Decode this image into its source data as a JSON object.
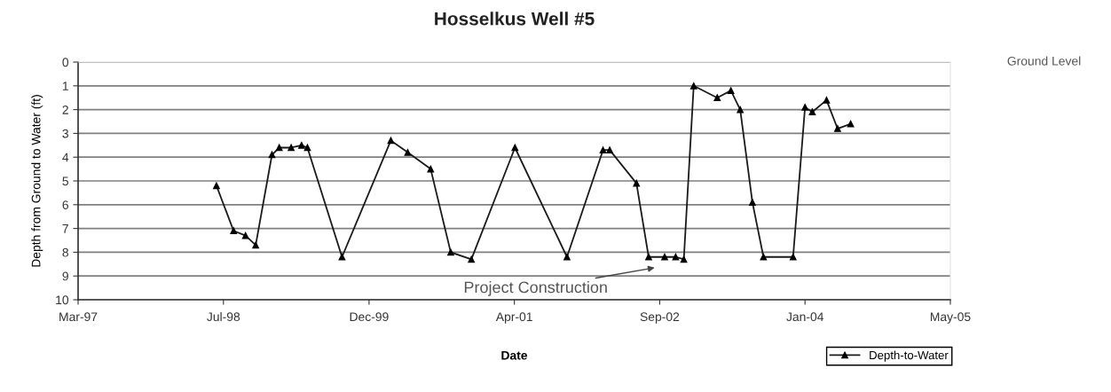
{
  "chart_data": {
    "type": "line",
    "title": "Hosselkus Well #5",
    "xlabel": "Date",
    "ylabel": "Depth from Ground to Water (ft)",
    "x": [
      "1998-07-01",
      "1998-08-29",
      "1998-10-09",
      "1998-11-13",
      "1999-01-08",
      "1999-02-02",
      "1999-03-15",
      "1999-04-20",
      "1999-05-10",
      "1999-09-06",
      "2000-02-21",
      "2000-04-19",
      "2000-07-07",
      "2000-09-14",
      "2000-11-24",
      "2001-04-23",
      "2001-10-19",
      "2002-02-20",
      "2002-03-15",
      "2002-06-15",
      "2002-07-27",
      "2002-09-20",
      "2002-10-28",
      "2002-11-25",
      "2002-12-29",
      "2003-03-20",
      "2003-05-06",
      "2003-06-07",
      "2003-07-19",
      "2003-08-26",
      "2003-12-06",
      "2004-01-16",
      "2004-02-10",
      "2004-03-30",
      "2004-05-07",
      "2004-06-21"
    ],
    "series": [
      {
        "name": "Depth-to-Water",
        "color": "#1a1a1a",
        "values": [
          5.2,
          7.1,
          7.3,
          7.7,
          3.9,
          3.6,
          3.6,
          3.5,
          3.6,
          8.2,
          3.3,
          3.8,
          4.5,
          8.0,
          8.3,
          3.6,
          8.2,
          3.7,
          3.7,
          5.1,
          8.2,
          8.2,
          8.2,
          8.3,
          1.0,
          1.5,
          1.2,
          2.0,
          5.9,
          8.2,
          8.2,
          1.9,
          2.1,
          1.6,
          2.8,
          2.6
        ]
      }
    ],
    "xlim": [
      "1997-03-12",
      "2005-05-30"
    ],
    "xticks": [
      {
        "value": "1997-03-12",
        "label": "Mar-97"
      },
      {
        "value": "1998-07-25",
        "label": "Jul-98"
      },
      {
        "value": "1999-12-08",
        "label": "Dec-99"
      },
      {
        "value": "2001-04-21",
        "label": "Apr-01"
      },
      {
        "value": "2002-09-03",
        "label": "Sep-02"
      },
      {
        "value": "2004-01-16",
        "label": "Jan-04"
      },
      {
        "value": "2005-05-30",
        "label": "May-05"
      }
    ],
    "ylim": [
      10,
      0
    ],
    "yticks": [
      0,
      1,
      2,
      3,
      4,
      5,
      6,
      7,
      8,
      9,
      10
    ],
    "annotations": [
      "Project Construction",
      "Ground Level"
    ],
    "grid": "y",
    "legend": "bottom right",
    "marker": "triangle",
    "line_style": "solid"
  }
}
